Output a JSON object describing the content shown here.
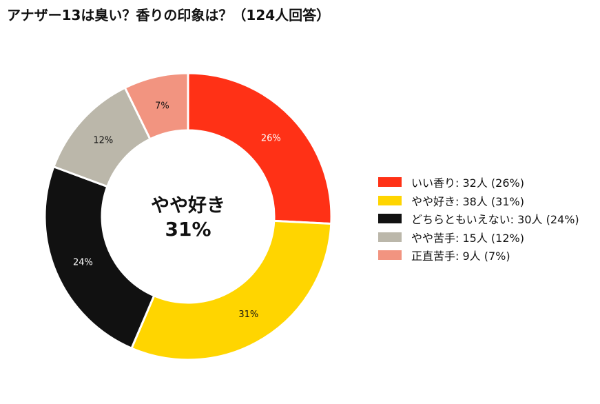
{
  "title": "アナザー13は臭い？香りの印象は？（124人回答）",
  "chart_data": {
    "type": "pie",
    "donut": true,
    "center_label": {
      "line1": "やや好き",
      "line2": "31%"
    },
    "categories": [
      "いい香り",
      "やや好き",
      "どちらともいえない",
      "やや苦手",
      "正直苦手"
    ],
    "values": [
      32,
      38,
      30,
      15,
      9
    ],
    "percent_labels": [
      "26%",
      "31%",
      "24%",
      "12%",
      "7%"
    ],
    "colors": [
      "#ff3116",
      "#ffd500",
      "#111111",
      "#bbb7aa",
      "#f29480"
    ],
    "label_colors": [
      "#ffffff",
      "#111111",
      "#ffffff",
      "#111111",
      "#111111"
    ],
    "legend_entries": [
      "いい香り:  32人 (26%)",
      "やや好き:  38人 (31%)",
      "どちらともいえない:  30人 (24%)",
      "やや苦手:  15人 (12%)",
      "正直苦手:  9人 (7%)"
    ],
    "legend_position": "right"
  }
}
